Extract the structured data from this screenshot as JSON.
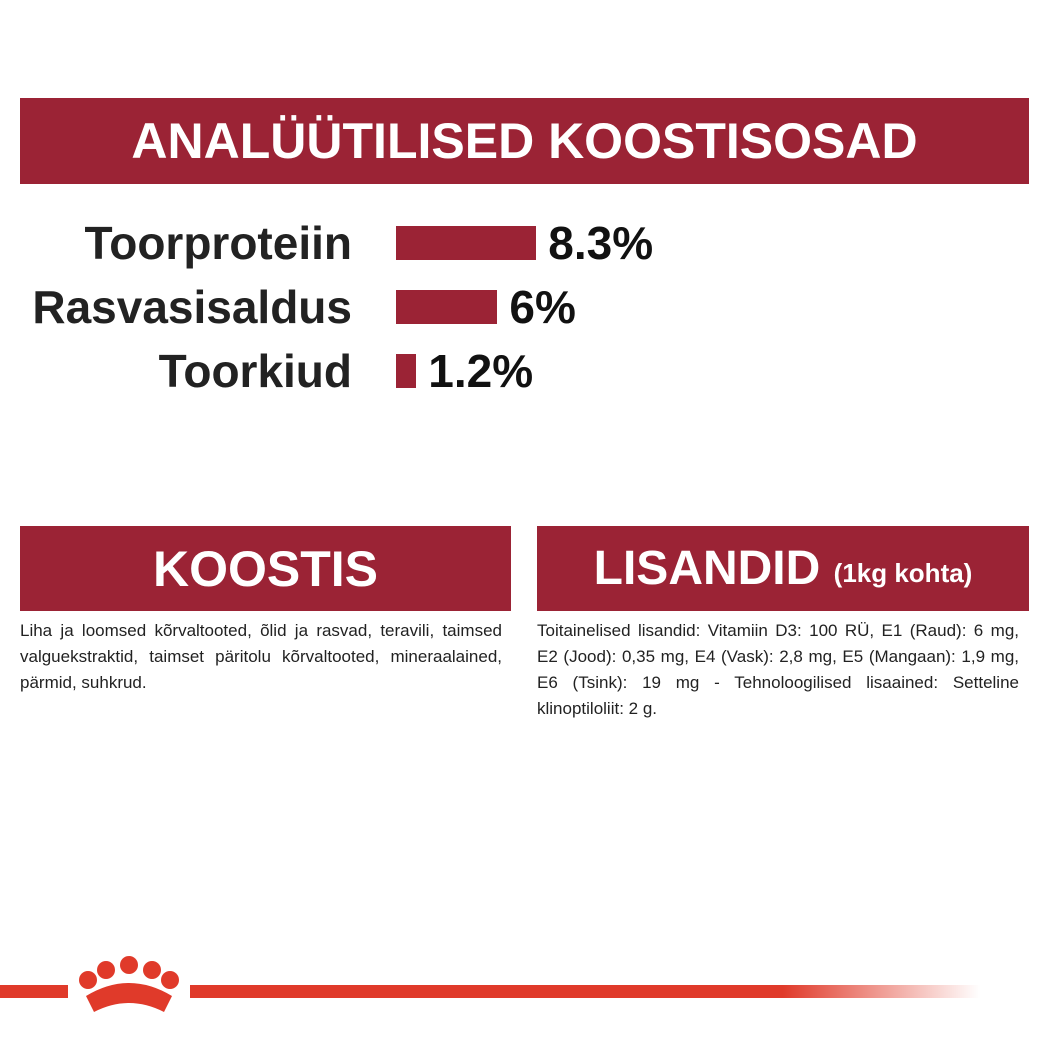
{
  "chart_data": {
    "type": "bar",
    "title": "ANALÜÜTILISED KOOSTISOSAD",
    "categories": [
      "Toorproteiin",
      "Rasvasisaldus",
      "Toorkiud"
    ],
    "values": [
      8.3,
      6,
      1.2
    ],
    "value_labels": [
      "8.3%",
      "6%",
      "1.2%"
    ],
    "color": "#9b2335"
  },
  "koostis": {
    "title": "KOOSTIS",
    "text": "Liha ja loomsed kõrvaltooted, õlid ja rasvad, teravili, taimsed valguekstraktid, taimset päritolu kõrvaltooted, mineraalained, pärmid, suhkrud."
  },
  "lisandid": {
    "title": "LISANDID",
    "subtitle": "(1kg kohta)",
    "text": "Toitainelised lisandid: Vitamiin D3: 100 RÜ, E1 (Raud): 6 mg, E2 (Jood): 0,35 mg, E4 (Vask): 2,8 mg, E5 (Mangaan): 1,9 mg, E6 (Tsink): 19 mg - Tehnoloogilised lisaained: Setteline klinoptiloliit: 2 g."
  }
}
